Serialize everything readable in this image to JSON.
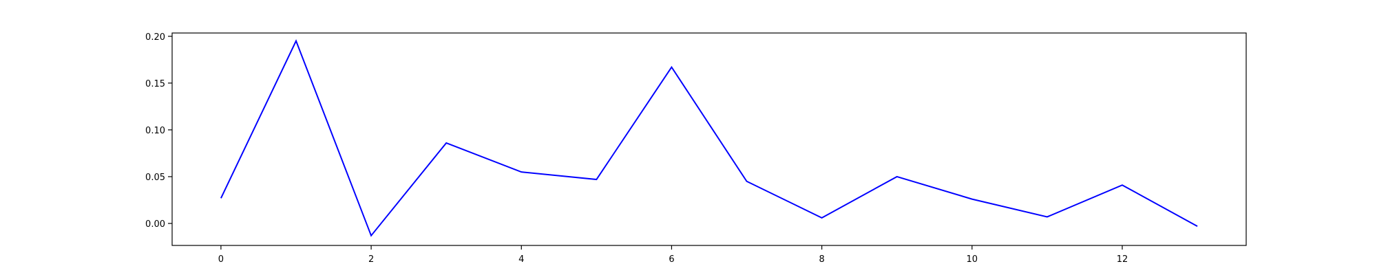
{
  "chart_data": {
    "type": "line",
    "title": "",
    "xlabel": "",
    "ylabel": "",
    "xlim": [
      -0.65,
      13.65
    ],
    "ylim": [
      -0.0235,
      0.2035
    ],
    "xticks": [
      0,
      2,
      4,
      6,
      8,
      10,
      12
    ],
    "xtick_labels": [
      "0",
      "2",
      "4",
      "6",
      "8",
      "10",
      "12"
    ],
    "yticks": [
      0.0,
      0.05,
      0.1,
      0.15,
      0.2
    ],
    "ytick_labels": [
      "0.00",
      "0.05",
      "0.10",
      "0.15",
      "0.20"
    ],
    "grid": false,
    "legend": "none",
    "series": [
      {
        "color": "#0000ff",
        "x": [
          0,
          1,
          2,
          3,
          4,
          5,
          6,
          7,
          8,
          9,
          10,
          11,
          12,
          13
        ],
        "y": [
          0.027,
          0.195,
          -0.013,
          0.086,
          0.055,
          0.047,
          0.167,
          0.045,
          0.006,
          0.05,
          0.026,
          0.007,
          0.041,
          -0.003
        ]
      }
    ]
  }
}
